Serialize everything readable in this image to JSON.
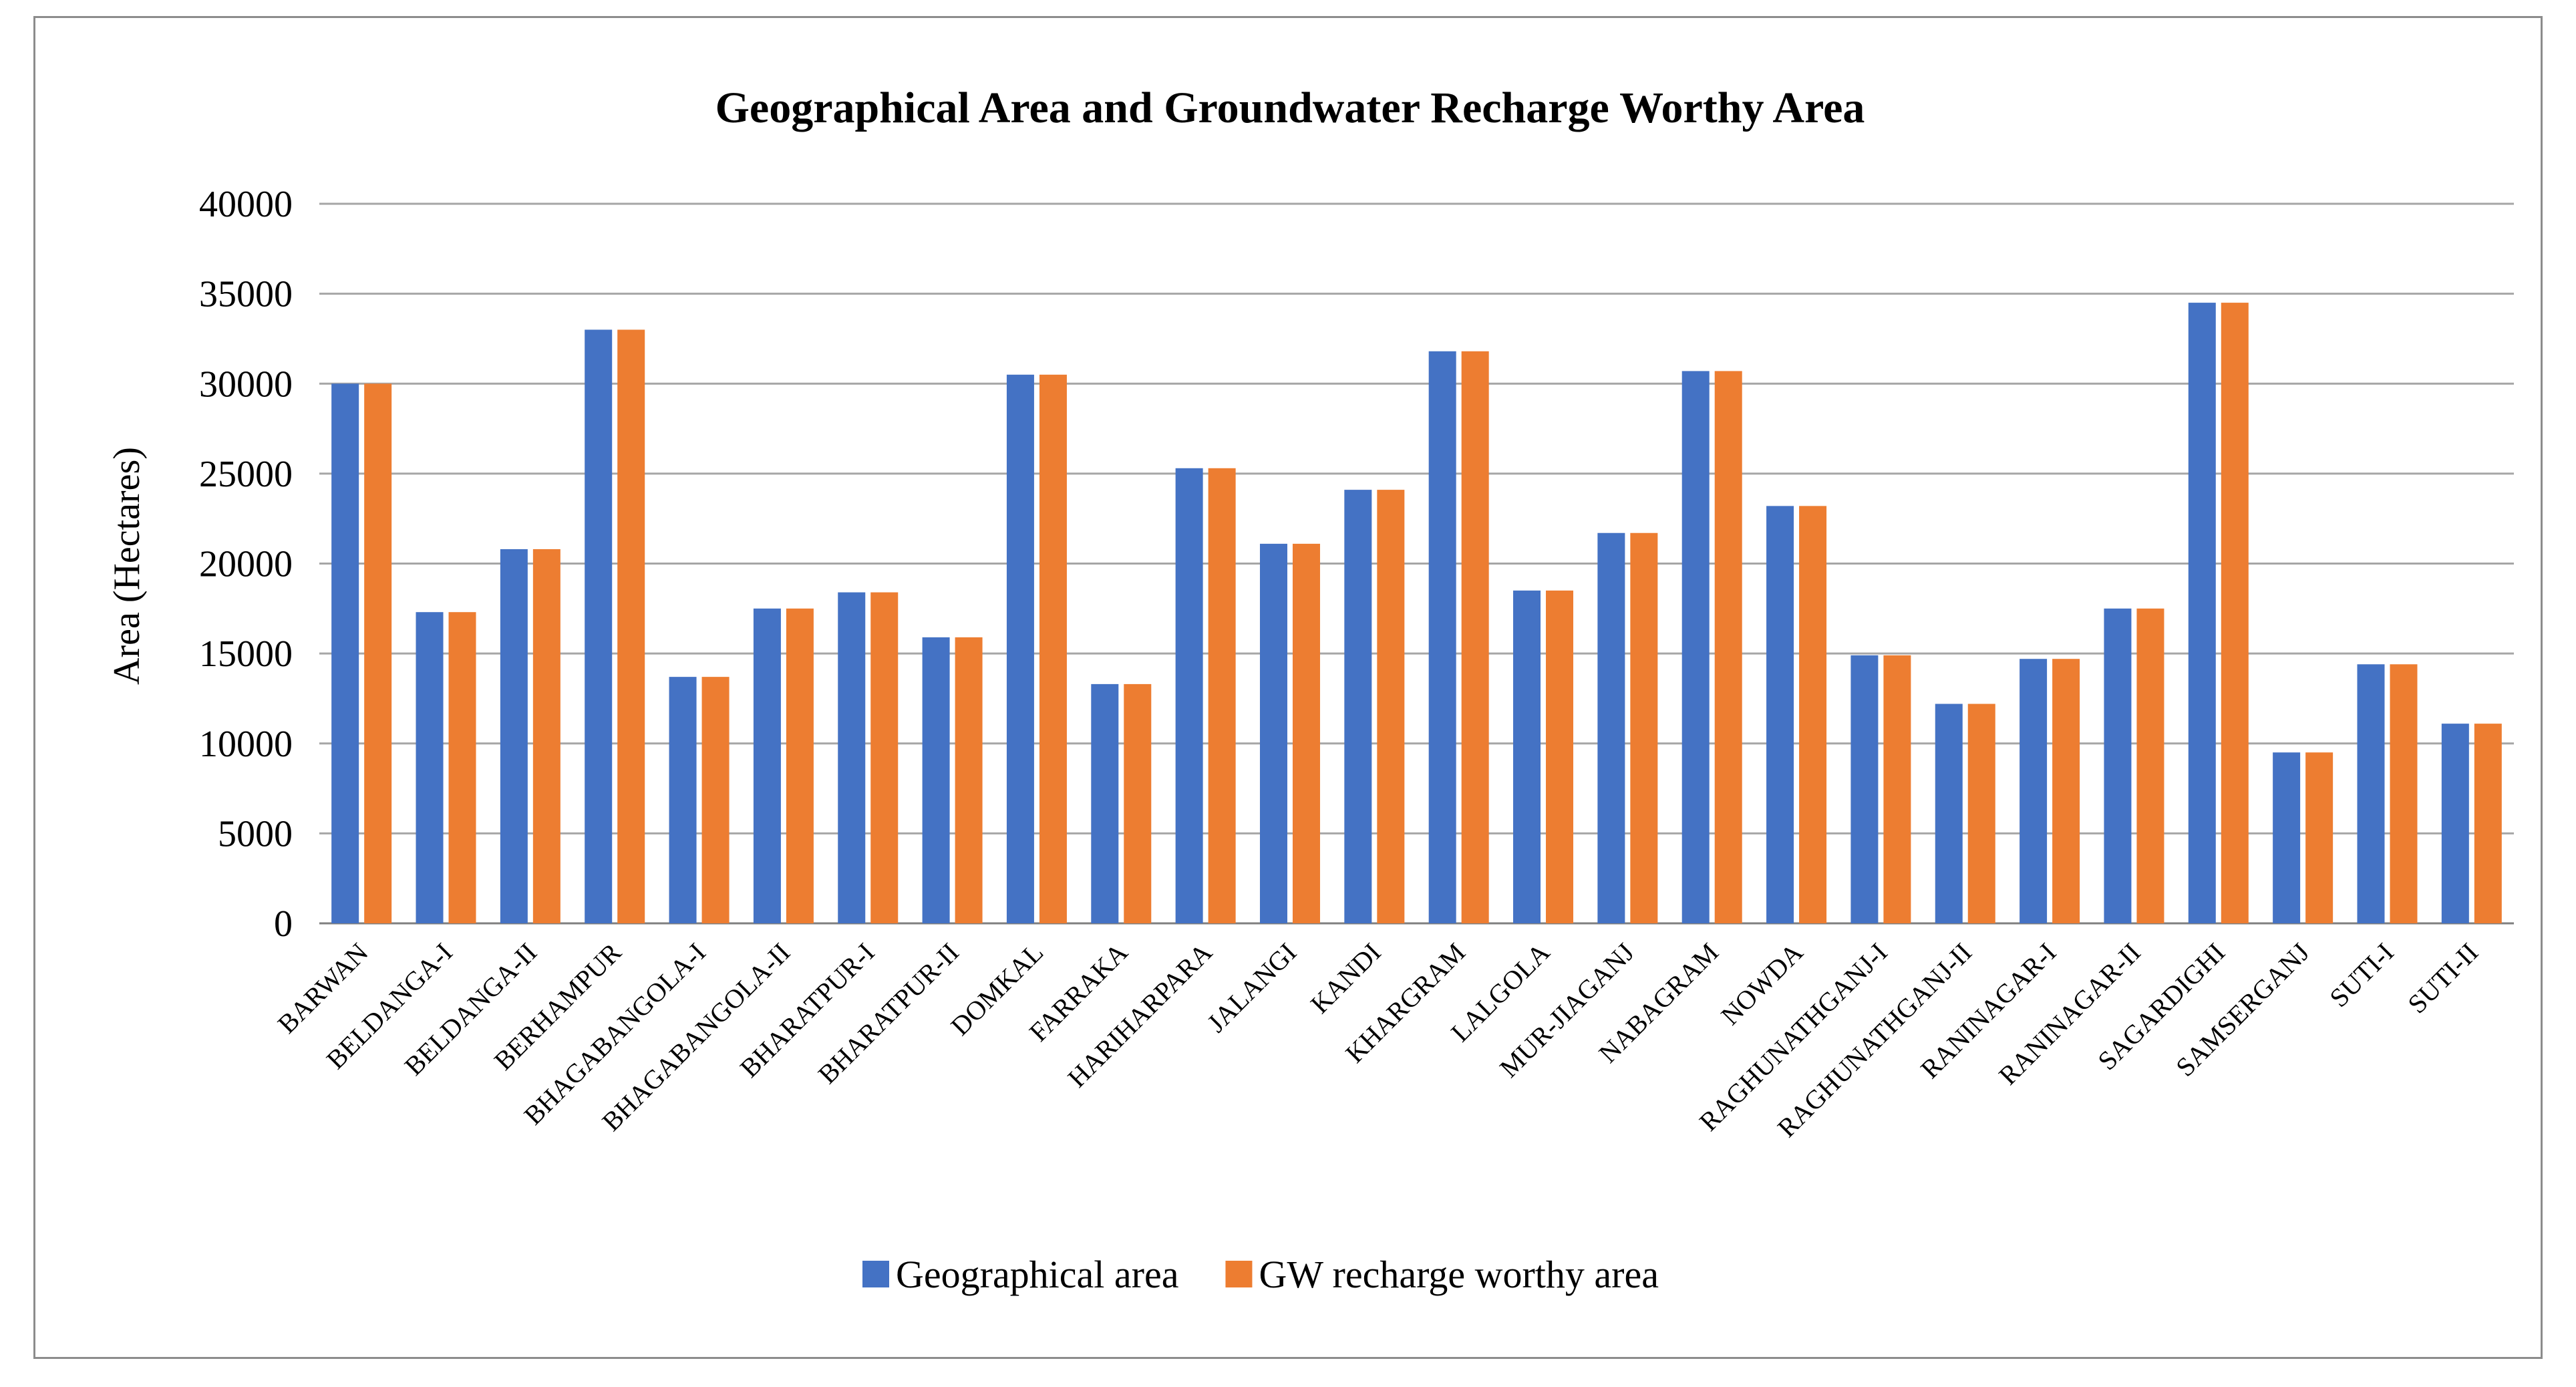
{
  "chart_data": {
    "type": "bar",
    "title": "Geographical Area and Groundwater Recharge Worthy Area",
    "xlabel": "",
    "ylabel": "Area (Hectares)",
    "ylim": [
      0,
      40000
    ],
    "yticks": [
      0,
      5000,
      10000,
      15000,
      20000,
      25000,
      30000,
      35000,
      40000
    ],
    "grid": true,
    "legend_position": "bottom",
    "categories": [
      "BARWAN",
      "BELDANGA-I",
      "BELDANGA-II",
      "BERHAMPUR",
      "BHAGABANGOLA-I",
      "BHAGABANGOLA-II",
      "BHARATPUR-I",
      "BHARATPUR-II",
      "DOMKAL",
      "FARRAKA",
      "HARIHARPARA",
      "JALANGI",
      "KANDI",
      "KHARGRAM",
      "LALGOLA",
      "MUR-JIAGANJ",
      "NABAGRAM",
      "NOWDA",
      "RAGHUNATHGANJ-I",
      "RAGHUNATHGANJ-II",
      "RANINAGAR-I",
      "RANINAGAR-II",
      "SAGARDIGHI",
      "SAMSERGANJ",
      "SUTI-I",
      "SUTI-II"
    ],
    "series": [
      {
        "name": "Geographical area",
        "color": "#4472c4",
        "values": [
          30000,
          17300,
          20800,
          33000,
          13700,
          17500,
          18400,
          15900,
          30500,
          13300,
          25300,
          21100,
          24100,
          31800,
          18500,
          21700,
          30700,
          23200,
          14900,
          12200,
          14700,
          17500,
          34500,
          9500,
          14400,
          11100
        ]
      },
      {
        "name": "GW recharge worthy area",
        "color": "#ed7d31",
        "values": [
          30000,
          17300,
          20800,
          33000,
          13700,
          17500,
          18400,
          15900,
          30500,
          13300,
          25300,
          21100,
          24100,
          31800,
          18500,
          21700,
          30700,
          23200,
          14900,
          12200,
          14700,
          17500,
          34500,
          9500,
          14400,
          11100
        ]
      }
    ]
  }
}
